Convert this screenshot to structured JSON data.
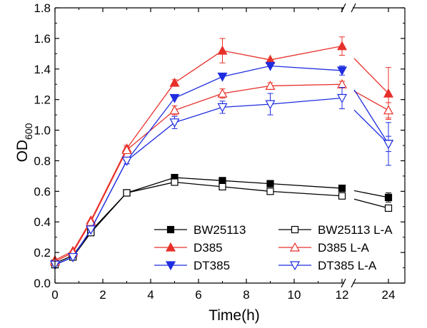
{
  "chart_data": {
    "type": "line",
    "xlabel": "Time(h)",
    "ylabel_base": "OD",
    "ylabel_sub": "600",
    "x": [
      0,
      0.75,
      1.5,
      3,
      5,
      7,
      9,
      12,
      24
    ],
    "x_ticks": [
      0,
      2,
      4,
      6,
      8,
      10,
      12,
      24
    ],
    "x_axis_break": true,
    "ylim": [
      0.0,
      1.8
    ],
    "y_ticks": [
      "0.0",
      "0.2",
      "0.4",
      "0.6",
      "0.8",
      "1.0",
      "1.2",
      "1.4",
      "1.6",
      "1.8"
    ],
    "legend_position": "bottom-right",
    "series": [
      {
        "name": "BW25113",
        "color": "#000000",
        "marker": "square",
        "filled": true,
        "values": [
          0.13,
          0.18,
          0.34,
          0.59,
          0.69,
          0.67,
          0.65,
          0.62,
          0.56
        ],
        "errors": [
          0.01,
          0.01,
          0.01,
          0.01,
          0.01,
          0.02,
          0.01,
          0.02,
          0.03
        ]
      },
      {
        "name": "BW25113 L-A",
        "color": "#000000",
        "marker": "square",
        "filled": false,
        "values": [
          0.12,
          0.17,
          0.33,
          0.59,
          0.66,
          0.63,
          0.6,
          0.57,
          0.49
        ],
        "errors": [
          0.01,
          0.01,
          0.01,
          0.01,
          0.01,
          0.02,
          0.01,
          0.02,
          0.02
        ]
      },
      {
        "name": "D385",
        "color": "#e8302a",
        "marker": "triangle-up",
        "filled": true,
        "values": [
          0.15,
          0.21,
          0.41,
          0.88,
          1.31,
          1.52,
          1.46,
          1.55,
          1.24
        ],
        "errors": [
          0.01,
          0.01,
          0.01,
          0.02,
          0.02,
          0.08,
          0.01,
          0.06,
          0.17
        ]
      },
      {
        "name": "D385 L-A",
        "color": "#e8302a",
        "marker": "triangle-up",
        "filled": false,
        "values": [
          0.14,
          0.2,
          0.4,
          0.87,
          1.13,
          1.24,
          1.29,
          1.3,
          1.13
        ],
        "errors": [
          0.01,
          0.01,
          0.01,
          0.02,
          0.03,
          0.03,
          0.02,
          0.02,
          0.05
        ]
      },
      {
        "name": "DT385",
        "color": "#1f2de0",
        "marker": "triangle-down",
        "filled": true,
        "values": [
          0.12,
          0.17,
          0.35,
          0.8,
          1.21,
          1.35,
          1.42,
          1.39,
          0.91
        ],
        "errors": [
          0.01,
          0.01,
          0.01,
          0.02,
          0.01,
          0.01,
          0.01,
          0.03,
          0.05
        ]
      },
      {
        "name": "DT385 L-A",
        "color": "#1f2de0",
        "marker": "triangle-down",
        "filled": false,
        "values": [
          0.12,
          0.17,
          0.35,
          0.8,
          1.05,
          1.15,
          1.17,
          1.21,
          0.91
        ],
        "errors": [
          0.01,
          0.01,
          0.01,
          0.02,
          0.04,
          0.04,
          0.07,
          0.07,
          0.14
        ]
      }
    ]
  }
}
